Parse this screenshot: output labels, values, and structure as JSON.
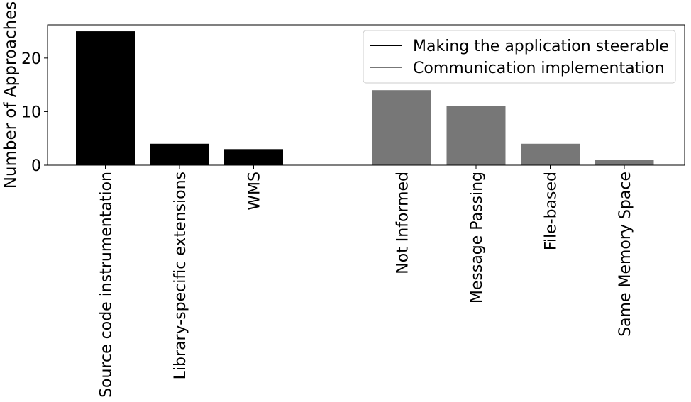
{
  "chart_data": {
    "type": "bar",
    "ylabel": "Number of Approaches",
    "ylim": [
      0,
      26.2
    ],
    "yticks": [
      0,
      10,
      20
    ],
    "grid": false,
    "legend_position": "top-right",
    "groups": [
      {
        "name": "Making the application steerable",
        "color": "#000000",
        "categories": [
          "Source code instrumentation",
          "Library-specific extensions",
          "WMS"
        ],
        "values": [
          25,
          4,
          3
        ]
      },
      {
        "name": "Communication implementation",
        "color": "#777777",
        "categories": [
          "Not Informed",
          "Message Passing",
          "File-based",
          "Same Memory Space"
        ],
        "values": [
          14,
          11,
          4,
          1
        ]
      }
    ]
  }
}
